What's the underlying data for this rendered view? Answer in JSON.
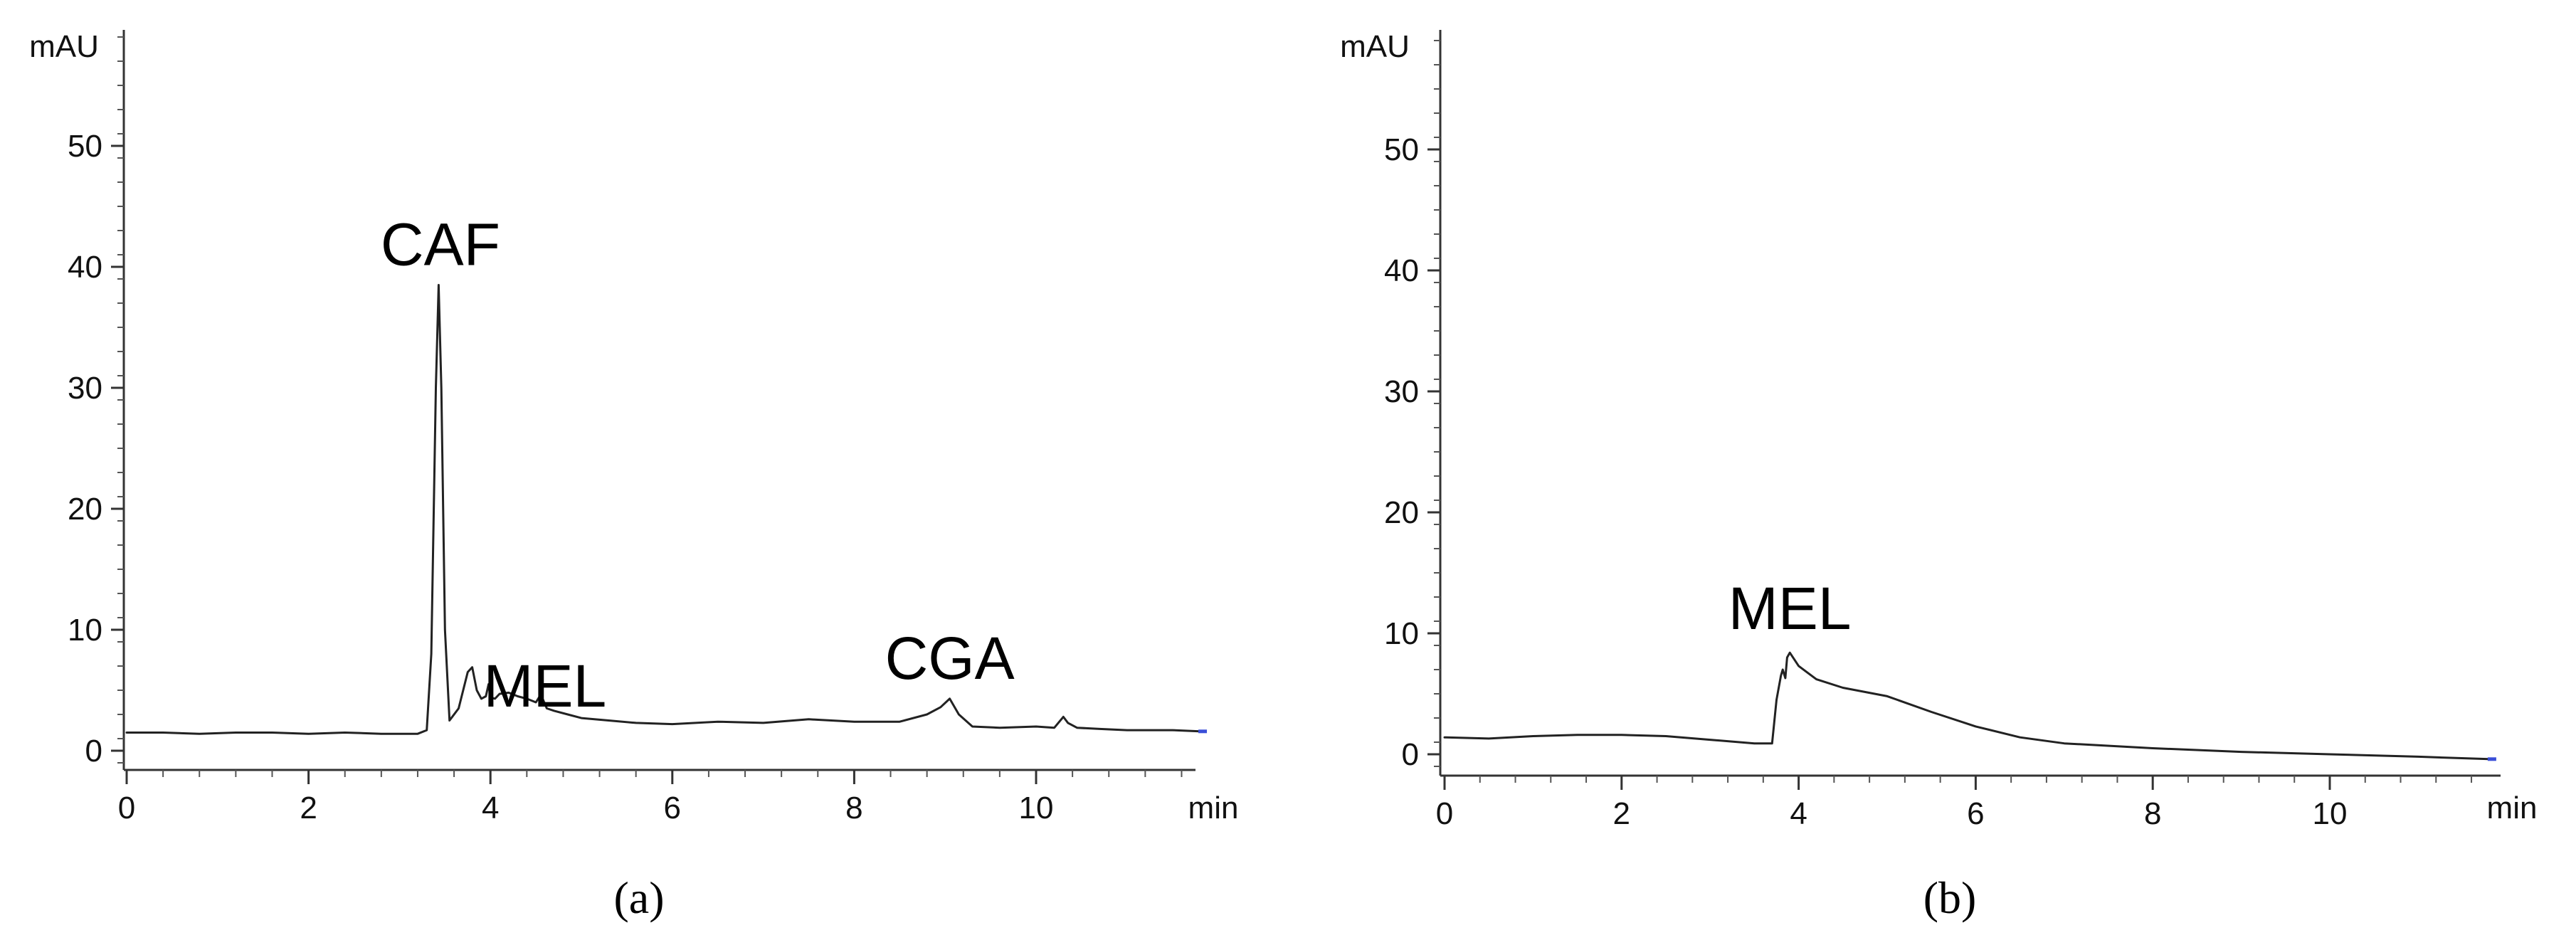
{
  "chart_data": [
    {
      "type": "line",
      "panel_label": "(a)",
      "xlabel": "min",
      "ylabel": "mAU",
      "xlim": [
        0,
        11.8
      ],
      "ylim": [
        -1.5,
        62
      ],
      "x_ticks": [
        "0",
        "2",
        "4",
        "6",
        "8",
        "10"
      ],
      "y_ticks": [
        "0",
        "10",
        "20",
        "30",
        "40",
        "50"
      ],
      "x_tick_values": [
        0,
        2,
        4,
        6,
        8,
        10
      ],
      "y_tick_values": [
        0,
        10,
        20,
        30,
        40,
        50
      ],
      "grid": false,
      "line_color": "#222222",
      "end_marker_color": "#3a4fd8",
      "annotations": [
        {
          "text": "CAF",
          "x": 3.45,
          "y": 38.5
        },
        {
          "text": "MEL",
          "x": 4.6,
          "y": 2.0
        },
        {
          "text": "CGA",
          "x": 9.05,
          "y": 4.3
        }
      ],
      "series": [
        {
          "x": [
            0.0,
            0.4,
            0.8,
            1.2,
            1.6,
            2.0,
            2.4,
            2.8,
            3.2,
            3.3,
            3.35,
            3.4,
            3.43,
            3.46,
            3.5,
            3.55,
            3.65,
            3.75,
            3.8,
            3.85,
            3.9,
            3.95,
            3.98,
            4.0,
            4.05,
            4.1,
            4.2,
            4.3,
            4.4,
            4.5,
            4.55,
            4.58,
            4.62,
            4.7,
            4.85,
            5.0,
            5.3,
            5.6,
            6.0,
            6.5,
            7.0,
            7.5,
            8.0,
            8.5,
            8.8,
            8.95,
            9.05,
            9.15,
            9.3,
            9.6,
            10.0,
            10.2,
            10.3,
            10.35,
            10.45,
            10.7,
            11.0,
            11.5,
            11.8
          ],
          "y": [
            1.5,
            1.5,
            1.4,
            1.5,
            1.5,
            1.4,
            1.5,
            1.4,
            1.4,
            1.7,
            8.0,
            30.0,
            38.5,
            30.0,
            10.0,
            2.5,
            3.5,
            6.5,
            6.9,
            5.0,
            4.3,
            4.5,
            5.5,
            4.4,
            4.3,
            4.7,
            4.8,
            4.5,
            4.3,
            4.0,
            4.6,
            4.2,
            3.5,
            3.3,
            3.0,
            2.7,
            2.5,
            2.3,
            2.2,
            2.4,
            2.3,
            2.6,
            2.4,
            2.4,
            3.0,
            3.6,
            4.3,
            3.0,
            2.0,
            1.9,
            2.0,
            1.9,
            2.8,
            2.3,
            1.9,
            1.8,
            1.7,
            1.7,
            1.6
          ]
        }
      ]
    },
    {
      "type": "line",
      "panel_label": "(b)",
      "xlabel": "min",
      "ylabel": "mAU",
      "xlim": [
        0,
        11.8
      ],
      "ylim": [
        -1.5,
        62
      ],
      "x_ticks": [
        "0",
        "2",
        "4",
        "6",
        "8",
        "10"
      ],
      "y_ticks": [
        "0",
        "10",
        "20",
        "30",
        "40",
        "50"
      ],
      "x_tick_values": [
        0,
        2,
        4,
        6,
        8,
        10
      ],
      "y_tick_values": [
        0,
        10,
        20,
        30,
        40,
        50
      ],
      "grid": false,
      "line_color": "#222222",
      "end_marker_color": "#3a4fd8",
      "annotations": [
        {
          "text": "MEL",
          "x": 3.9,
          "y": 8.7
        }
      ],
      "series": [
        {
          "x": [
            0.0,
            0.5,
            1.0,
            1.5,
            2.0,
            2.5,
            3.0,
            3.5,
            3.7,
            3.75,
            3.8,
            3.82,
            3.85,
            3.87,
            3.9,
            4.0,
            4.2,
            4.5,
            5.0,
            5.5,
            6.0,
            6.5,
            7.0,
            8.0,
            9.0,
            10.0,
            11.0,
            11.8
          ],
          "y": [
            1.4,
            1.3,
            1.5,
            1.6,
            1.6,
            1.5,
            1.2,
            0.9,
            0.9,
            4.5,
            6.5,
            7.0,
            6.3,
            8.0,
            8.4,
            7.3,
            6.2,
            5.5,
            4.8,
            3.5,
            2.3,
            1.4,
            0.9,
            0.5,
            0.2,
            0.0,
            -0.2,
            -0.4
          ]
        }
      ]
    }
  ]
}
